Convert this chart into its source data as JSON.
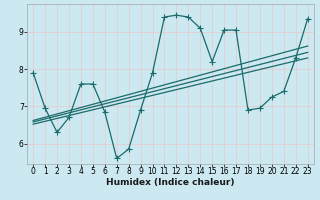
{
  "xlabel": "Humidex (Indice chaleur)",
  "bg_color": "#cce8f0",
  "grid_color": "#e8c8c8",
  "line_color": "#1a6b6b",
  "xlim": [
    -0.5,
    23.5
  ],
  "ylim": [
    5.45,
    9.75
  ],
  "xticks": [
    0,
    1,
    2,
    3,
    4,
    5,
    6,
    7,
    8,
    9,
    10,
    11,
    12,
    13,
    14,
    15,
    16,
    17,
    18,
    19,
    20,
    21,
    22,
    23
  ],
  "yticks": [
    6,
    7,
    8,
    9
  ],
  "line1_x": [
    0,
    1,
    2,
    3,
    4,
    5,
    6,
    7,
    8,
    9,
    10,
    11,
    12,
    13,
    14,
    15,
    16,
    17,
    18,
    19,
    20,
    21,
    22,
    23
  ],
  "line1_y": [
    7.9,
    6.95,
    6.3,
    6.7,
    7.6,
    7.6,
    6.85,
    5.6,
    5.85,
    6.9,
    7.9,
    9.4,
    9.45,
    9.4,
    9.1,
    8.2,
    9.05,
    9.05,
    6.9,
    6.95,
    7.25,
    7.4,
    8.3,
    9.35
  ],
  "line2_x": [
    0,
    23
  ],
  "line2_y": [
    6.62,
    8.62
  ],
  "line3_x": [
    0,
    23
  ],
  "line3_y": [
    6.58,
    8.45
  ],
  "line4_x": [
    0,
    23
  ],
  "line4_y": [
    6.52,
    8.3
  ],
  "xlabel_fontsize": 6.5,
  "tick_fontsize": 5.5,
  "marker_size": 2.2,
  "line_width": 0.9
}
